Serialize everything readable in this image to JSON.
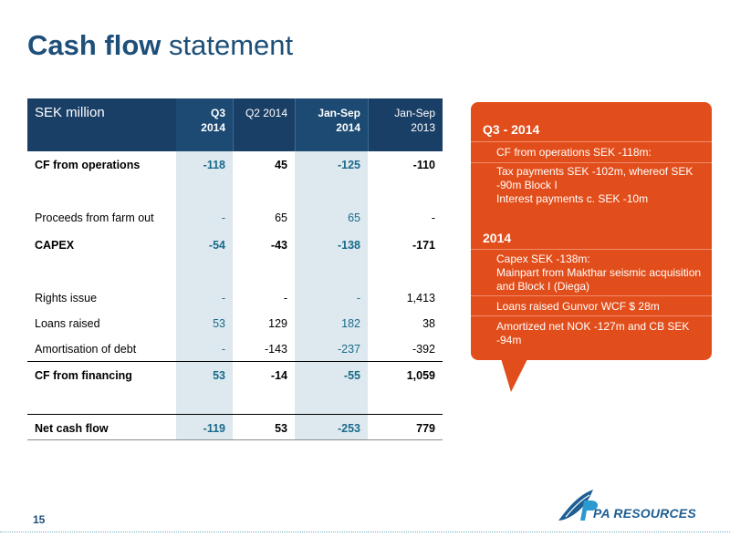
{
  "title": {
    "bold": "Cash flow",
    "light": "statement"
  },
  "table": {
    "headers": {
      "label": "SEK million",
      "q3_line1": "Q3",
      "q3_line2": "2014",
      "q2": "Q2 2014",
      "jan14_line1": "Jan-Sep",
      "jan14_line2": "2014",
      "jan13_line1": "Jan-Sep",
      "jan13_line2": "2013"
    },
    "rows": [
      {
        "label": "CF from operations",
        "q3": "-118",
        "q2": "45",
        "jan14": "-125",
        "jan13": "-110",
        "bold": true
      },
      {
        "label": "Proceeds from farm out",
        "q3": "-",
        "q2": "65",
        "jan14": "65",
        "jan13": "-"
      },
      {
        "label": "CAPEX",
        "q3": "-54",
        "q2": "-43",
        "jan14": "-138",
        "jan13": "-171",
        "bold": true
      },
      {
        "label": "Rights issue",
        "q3": "-",
        "q2": "-",
        "jan14": "-",
        "jan13": "1,413"
      },
      {
        "label": "Loans raised",
        "q3": "53",
        "q2": "129",
        "jan14": "182",
        "jan13": "38"
      },
      {
        "label": "Amortisation of debt",
        "q3": "-",
        "q2": "-143",
        "jan14": "-237",
        "jan13": "-392"
      },
      {
        "label": "CF from financing",
        "q3": "53",
        "q2": "-14",
        "jan14": "-55",
        "jan13": "1,059",
        "bold": true
      },
      {
        "label": "Net cash flow",
        "q3": "-119",
        "q2": "53",
        "jan14": "-253",
        "jan13": "779",
        "bold": true
      }
    ]
  },
  "callout": {
    "q3_heading": "Q3 - 2014",
    "q3_items": [
      "CF from operations SEK -118m:",
      "Tax payments SEK -102m, whereof SEK -90m Block I",
      "Interest payments c. SEK -10m"
    ],
    "y_heading": "2014",
    "y_items": [
      "Capex SEK -138m:",
      "Mainpart from Makthar seismic acquisition and Block I (Diega)",
      "Loans raised Gunvor WCF $ 28m",
      "Amortized net NOK -127m and CB SEK -94m"
    ],
    "color": "#e24e1b"
  },
  "footer": {
    "page_number": "15",
    "logo_text": "PA RESOURCES",
    "logo_icon": "pa-resources-leaf-icon"
  },
  "colors": {
    "title": "#1d4f78",
    "header_bg": "#1a3f66",
    "highlight_column": "#dde9ef",
    "highlight_text": "#1a6a8a"
  }
}
